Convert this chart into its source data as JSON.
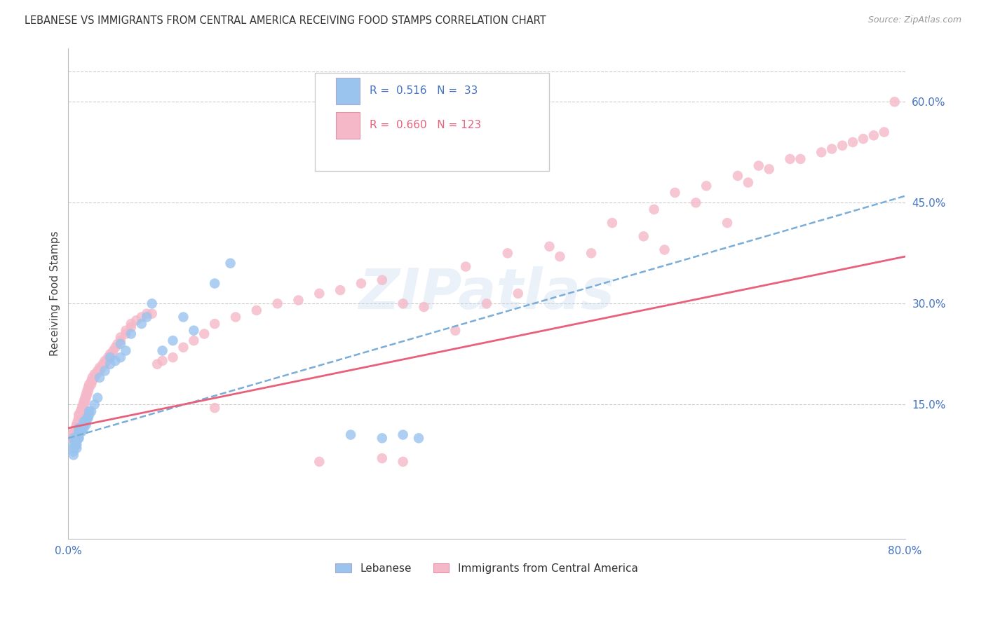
{
  "title": "LEBANESE VS IMMIGRANTS FROM CENTRAL AMERICA RECEIVING FOOD STAMPS CORRELATION CHART",
  "source": "Source: ZipAtlas.com",
  "ylabel": "Receiving Food Stamps",
  "xlim": [
    0.0,
    0.8
  ],
  "ylim": [
    -0.05,
    0.68
  ],
  "xticks": [
    0.0,
    0.1,
    0.2,
    0.3,
    0.4,
    0.5,
    0.6,
    0.7,
    0.8
  ],
  "xticklabels": [
    "0.0%",
    "",
    "",
    "",
    "",
    "",
    "",
    "",
    "80.0%"
  ],
  "yticks_right": [
    0.15,
    0.3,
    0.45,
    0.6
  ],
  "ytick_labels_right": [
    "15.0%",
    "30.0%",
    "45.0%",
    "60.0%"
  ],
  "grid_color": "#cccccc",
  "background_color": "#ffffff",
  "watermark": "ZIPatlas",
  "blue_color": "#9ac4ee",
  "pink_color": "#f5b8c8",
  "line_blue_color": "#7aadd8",
  "line_pink_color": "#e8607a",
  "label_color": "#4472c4",
  "tick_color": "#4472c4",
  "lebanese_x": [
    0.005,
    0.005,
    0.005,
    0.005,
    0.005,
    0.007,
    0.007,
    0.008,
    0.008,
    0.008,
    0.01,
    0.01,
    0.01,
    0.01,
    0.01,
    0.01,
    0.012,
    0.012,
    0.013,
    0.013,
    0.015,
    0.015,
    0.015,
    0.017,
    0.017,
    0.018,
    0.019,
    0.02,
    0.02,
    0.022,
    0.025,
    0.028,
    0.03,
    0.035,
    0.04,
    0.04,
    0.045,
    0.05,
    0.05,
    0.055,
    0.06,
    0.07,
    0.075,
    0.08,
    0.09,
    0.1,
    0.11,
    0.12,
    0.14,
    0.155,
    0.27,
    0.3,
    0.32,
    0.335
  ],
  "lebanese_y": [
    0.075,
    0.08,
    0.085,
    0.09,
    0.1,
    0.09,
    0.095,
    0.085,
    0.09,
    0.095,
    0.1,
    0.1,
    0.105,
    0.105,
    0.11,
    0.115,
    0.11,
    0.115,
    0.11,
    0.115,
    0.115,
    0.12,
    0.125,
    0.12,
    0.125,
    0.13,
    0.13,
    0.135,
    0.14,
    0.14,
    0.15,
    0.16,
    0.19,
    0.2,
    0.21,
    0.22,
    0.215,
    0.22,
    0.24,
    0.23,
    0.255,
    0.27,
    0.28,
    0.3,
    0.23,
    0.245,
    0.28,
    0.26,
    0.33,
    0.36,
    0.105,
    0.1,
    0.105,
    0.1
  ],
  "central_x": [
    0.003,
    0.004,
    0.005,
    0.005,
    0.005,
    0.006,
    0.006,
    0.007,
    0.007,
    0.007,
    0.008,
    0.008,
    0.008,
    0.009,
    0.009,
    0.01,
    0.01,
    0.01,
    0.01,
    0.01,
    0.011,
    0.011,
    0.012,
    0.012,
    0.013,
    0.013,
    0.014,
    0.014,
    0.015,
    0.015,
    0.016,
    0.016,
    0.017,
    0.017,
    0.018,
    0.018,
    0.019,
    0.019,
    0.02,
    0.02,
    0.022,
    0.022,
    0.023,
    0.023,
    0.025,
    0.025,
    0.027,
    0.028,
    0.03,
    0.03,
    0.032,
    0.033,
    0.035,
    0.035,
    0.037,
    0.038,
    0.04,
    0.04,
    0.042,
    0.043,
    0.045,
    0.047,
    0.05,
    0.05,
    0.055,
    0.055,
    0.06,
    0.06,
    0.065,
    0.07,
    0.075,
    0.08,
    0.085,
    0.09,
    0.1,
    0.11,
    0.12,
    0.13,
    0.14,
    0.16,
    0.18,
    0.2,
    0.22,
    0.24,
    0.26,
    0.28,
    0.3,
    0.32,
    0.34,
    0.37,
    0.4,
    0.43,
    0.47,
    0.5,
    0.55,
    0.57,
    0.6,
    0.63,
    0.65,
    0.67,
    0.7,
    0.73,
    0.75,
    0.77,
    0.79,
    0.38,
    0.42,
    0.46,
    0.52,
    0.56,
    0.58,
    0.61,
    0.64,
    0.66,
    0.69,
    0.72,
    0.74,
    0.76,
    0.78,
    0.14,
    0.3,
    0.32,
    0.24
  ],
  "central_y": [
    0.1,
    0.105,
    0.1,
    0.105,
    0.11,
    0.105,
    0.11,
    0.105,
    0.11,
    0.115,
    0.115,
    0.12,
    0.12,
    0.12,
    0.125,
    0.12,
    0.125,
    0.13,
    0.13,
    0.135,
    0.13,
    0.135,
    0.14,
    0.14,
    0.14,
    0.145,
    0.145,
    0.15,
    0.15,
    0.155,
    0.155,
    0.16,
    0.16,
    0.165,
    0.165,
    0.17,
    0.17,
    0.175,
    0.175,
    0.18,
    0.18,
    0.185,
    0.185,
    0.19,
    0.19,
    0.195,
    0.195,
    0.2,
    0.2,
    0.205,
    0.205,
    0.21,
    0.21,
    0.215,
    0.215,
    0.22,
    0.22,
    0.225,
    0.225,
    0.23,
    0.235,
    0.24,
    0.245,
    0.25,
    0.255,
    0.26,
    0.265,
    0.27,
    0.275,
    0.28,
    0.285,
    0.285,
    0.21,
    0.215,
    0.22,
    0.235,
    0.245,
    0.255,
    0.27,
    0.28,
    0.29,
    0.3,
    0.305,
    0.315,
    0.32,
    0.33,
    0.335,
    0.3,
    0.295,
    0.26,
    0.3,
    0.315,
    0.37,
    0.375,
    0.4,
    0.38,
    0.45,
    0.42,
    0.48,
    0.5,
    0.515,
    0.53,
    0.54,
    0.55,
    0.6,
    0.355,
    0.375,
    0.385,
    0.42,
    0.44,
    0.465,
    0.475,
    0.49,
    0.505,
    0.515,
    0.525,
    0.535,
    0.545,
    0.555,
    0.145,
    0.07,
    0.065,
    0.065
  ]
}
